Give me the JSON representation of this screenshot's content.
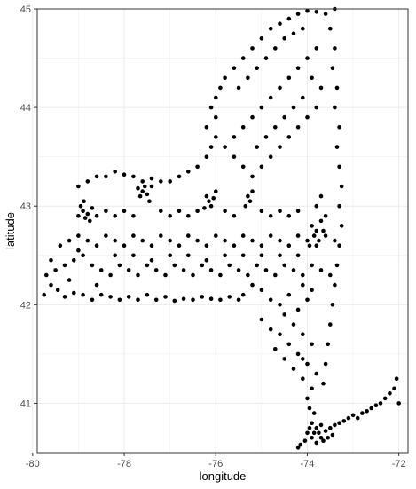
{
  "chart_data": {
    "type": "scatter",
    "title": "",
    "xlabel": "longitude",
    "ylabel": "latitude",
    "xlim": [
      -79.9,
      -71.8
    ],
    "ylim": [
      40.5,
      45.0
    ],
    "x_ticks": [
      -80,
      -78,
      -76,
      -74,
      -72
    ],
    "x_tick_labels": [
      "-80",
      "-78",
      "-76",
      "-74",
      "-72"
    ],
    "y_ticks": [
      41,
      42,
      43,
      44,
      45
    ],
    "y_tick_labels": [
      "41",
      "42",
      "43",
      "44",
      "45"
    ],
    "grid": true,
    "legend": "none",
    "point_color": "#000000",
    "panel_border_color": "#333333",
    "grid_color": "#ebebeb",
    "points": [
      [
        -79.75,
        42.1
      ],
      [
        -79.6,
        42.2
      ],
      [
        -79.45,
        42.15
      ],
      [
        -79.3,
        42.08
      ],
      [
        -79.1,
        42.12
      ],
      [
        -78.9,
        42.1
      ],
      [
        -78.7,
        42.05
      ],
      [
        -78.5,
        42.1
      ],
      [
        -78.3,
        42.08
      ],
      [
        -78.1,
        42.05
      ],
      [
        -77.9,
        42.08
      ],
      [
        -77.7,
        42.05
      ],
      [
        -77.5,
        42.1
      ],
      [
        -77.3,
        42.05
      ],
      [
        -77.1,
        42.08
      ],
      [
        -76.9,
        42.04
      ],
      [
        -76.7,
        42.06
      ],
      [
        -76.5,
        42.05
      ],
      [
        -76.3,
        42.08
      ],
      [
        -76.1,
        42.06
      ],
      [
        -75.9,
        42.05
      ],
      [
        -75.7,
        42.08
      ],
      [
        -75.5,
        42.05
      ],
      [
        -75.4,
        42.1
      ],
      [
        -79.7,
        42.3
      ],
      [
        -79.5,
        42.35
      ],
      [
        -79.3,
        42.4
      ],
      [
        -79.1,
        42.45
      ],
      [
        -78.9,
        42.5
      ],
      [
        -78.7,
        42.4
      ],
      [
        -78.5,
        42.35
      ],
      [
        -78.3,
        42.3
      ],
      [
        -78.1,
        42.4
      ],
      [
        -77.9,
        42.35
      ],
      [
        -77.7,
        42.3
      ],
      [
        -77.5,
        42.4
      ],
      [
        -77.3,
        42.35
      ],
      [
        -77.1,
        42.3
      ],
      [
        -76.9,
        42.4
      ],
      [
        -76.7,
        42.35
      ],
      [
        -76.5,
        42.3
      ],
      [
        -76.3,
        42.4
      ],
      [
        -76.1,
        42.35
      ],
      [
        -75.9,
        42.3
      ],
      [
        -75.7,
        42.4
      ],
      [
        -75.5,
        42.35
      ],
      [
        -75.3,
        42.3
      ],
      [
        -75.1,
        42.4
      ],
      [
        -74.9,
        42.35
      ],
      [
        -74.7,
        42.3
      ],
      [
        -74.5,
        42.4
      ],
      [
        -74.3,
        42.35
      ],
      [
        -74.1,
        42.3
      ],
      [
        -73.9,
        42.4
      ],
      [
        -73.7,
        42.35
      ],
      [
        -73.5,
        42.3
      ],
      [
        -79.4,
        42.6
      ],
      [
        -79.2,
        42.65
      ],
      [
        -79.0,
        42.7
      ],
      [
        -78.8,
        42.65
      ],
      [
        -78.6,
        42.6
      ],
      [
        -78.4,
        42.7
      ],
      [
        -78.2,
        42.65
      ],
      [
        -78.0,
        42.6
      ],
      [
        -77.8,
        42.7
      ],
      [
        -77.6,
        42.65
      ],
      [
        -77.4,
        42.6
      ],
      [
        -77.2,
        42.7
      ],
      [
        -77.0,
        42.65
      ],
      [
        -76.8,
        42.6
      ],
      [
        -76.6,
        42.7
      ],
      [
        -76.4,
        42.65
      ],
      [
        -76.2,
        42.6
      ],
      [
        -76.0,
        42.7
      ],
      [
        -75.8,
        42.65
      ],
      [
        -75.6,
        42.6
      ],
      [
        -75.4,
        42.7
      ],
      [
        -75.2,
        42.65
      ],
      [
        -75.0,
        42.6
      ],
      [
        -74.8,
        42.7
      ],
      [
        -74.6,
        42.65
      ],
      [
        -74.4,
        42.6
      ],
      [
        -74.2,
        42.7
      ],
      [
        -74.0,
        42.65
      ],
      [
        -73.8,
        42.6
      ],
      [
        -73.6,
        42.7
      ],
      [
        -73.4,
        42.65
      ],
      [
        -79.0,
        42.9
      ],
      [
        -78.9,
        42.95
      ],
      [
        -78.85,
        42.88
      ],
      [
        -78.8,
        42.92
      ],
      [
        -78.95,
        43.0
      ],
      [
        -78.75,
        42.85
      ],
      [
        -78.88,
        43.05
      ],
      [
        -78.7,
        42.98
      ],
      [
        -78.6,
        42.9
      ],
      [
        -78.4,
        42.95
      ],
      [
        -78.2,
        42.9
      ],
      [
        -78.0,
        42.95
      ],
      [
        -77.8,
        42.9
      ],
      [
        -77.6,
        43.15
      ],
      [
        -77.55,
        43.2
      ],
      [
        -77.65,
        43.1
      ],
      [
        -77.5,
        43.12
      ],
      [
        -77.7,
        43.18
      ],
      [
        -77.45,
        43.05
      ],
      [
        -77.6,
        43.25
      ],
      [
        -77.4,
        43.2
      ],
      [
        -77.2,
        42.95
      ],
      [
        -77.0,
        42.9
      ],
      [
        -76.8,
        42.95
      ],
      [
        -76.6,
        42.9
      ],
      [
        -76.4,
        42.95
      ],
      [
        -76.15,
        43.05
      ],
      [
        -76.1,
        43.0
      ],
      [
        -76.2,
        43.1
      ],
      [
        -76.05,
        43.08
      ],
      [
        -76.25,
        42.98
      ],
      [
        -76.0,
        43.15
      ],
      [
        -75.8,
        42.95
      ],
      [
        -75.6,
        42.9
      ],
      [
        -75.3,
        43.1
      ],
      [
        -75.25,
        43.05
      ],
      [
        -75.35,
        43.0
      ],
      [
        -75.2,
        43.15
      ],
      [
        -75.0,
        42.95
      ],
      [
        -74.8,
        42.9
      ],
      [
        -74.6,
        42.95
      ],
      [
        -74.4,
        42.9
      ],
      [
        -74.2,
        42.95
      ],
      [
        -73.9,
        42.8
      ],
      [
        -73.8,
        42.75
      ],
      [
        -73.75,
        42.65
      ],
      [
        -73.85,
        42.7
      ],
      [
        -73.7,
        42.85
      ],
      [
        -73.95,
        42.6
      ],
      [
        -73.65,
        42.75
      ],
      [
        -73.8,
        43.0
      ],
      [
        -73.7,
        43.1
      ],
      [
        -73.6,
        42.9
      ],
      [
        -79.0,
        43.2
      ],
      [
        -78.8,
        43.25
      ],
      [
        -78.6,
        43.3
      ],
      [
        -78.4,
        43.3
      ],
      [
        -78.2,
        43.35
      ],
      [
        -78.0,
        43.32
      ],
      [
        -77.8,
        43.3
      ],
      [
        -77.4,
        43.28
      ],
      [
        -77.2,
        43.25
      ],
      [
        -77.0,
        43.25
      ],
      [
        -76.8,
        43.3
      ],
      [
        -76.6,
        43.35
      ],
      [
        -76.4,
        43.4
      ],
      [
        -76.2,
        43.5
      ],
      [
        -76.1,
        43.6
      ],
      [
        -76.0,
        43.7
      ],
      [
        -76.2,
        43.8
      ],
      [
        -76.0,
        43.9
      ],
      [
        -76.1,
        44.0
      ],
      [
        -76.0,
        44.1
      ],
      [
        -75.9,
        44.2
      ],
      [
        -75.8,
        44.3
      ],
      [
        -75.6,
        44.4
      ],
      [
        -75.4,
        44.5
      ],
      [
        -75.2,
        44.6
      ],
      [
        -75.0,
        44.7
      ],
      [
        -74.8,
        44.8
      ],
      [
        -74.6,
        44.85
      ],
      [
        -74.4,
        44.9
      ],
      [
        -74.2,
        44.95
      ],
      [
        -74.0,
        44.98
      ],
      [
        -73.8,
        44.97
      ],
      [
        -73.6,
        44.95
      ],
      [
        -73.4,
        45.0
      ],
      [
        -73.5,
        44.8
      ],
      [
        -73.4,
        44.6
      ],
      [
        -73.45,
        44.4
      ],
      [
        -73.35,
        44.2
      ],
      [
        -73.4,
        44.0
      ],
      [
        -73.3,
        43.8
      ],
      [
        -73.35,
        43.6
      ],
      [
        -73.3,
        43.4
      ],
      [
        -73.25,
        43.2
      ],
      [
        -73.3,
        43.0
      ],
      [
        -73.25,
        42.8
      ],
      [
        -73.3,
        42.6
      ],
      [
        -73.35,
        42.4
      ],
      [
        -73.4,
        42.2
      ],
      [
        -73.45,
        42.0
      ],
      [
        -73.5,
        41.8
      ],
      [
        -73.55,
        41.6
      ],
      [
        -73.6,
        41.4
      ],
      [
        -73.65,
        41.2
      ],
      [
        -75.6,
        43.7
      ],
      [
        -75.4,
        43.8
      ],
      [
        -75.2,
        43.9
      ],
      [
        -75.0,
        44.0
      ],
      [
        -74.8,
        44.1
      ],
      [
        -74.6,
        44.2
      ],
      [
        -74.4,
        44.3
      ],
      [
        -74.2,
        44.4
      ],
      [
        -74.0,
        44.5
      ],
      [
        -73.8,
        44.6
      ],
      [
        -75.5,
        44.2
      ],
      [
        -75.3,
        44.3
      ],
      [
        -75.1,
        44.4
      ],
      [
        -74.9,
        44.5
      ],
      [
        -74.7,
        44.6
      ],
      [
        -74.5,
        44.7
      ],
      [
        -74.3,
        44.75
      ],
      [
        -74.1,
        44.8
      ],
      [
        -75.8,
        43.6
      ],
      [
        -75.6,
        43.5
      ],
      [
        -75.4,
        43.4
      ],
      [
        -75.2,
        43.3
      ],
      [
        -75.0,
        43.4
      ],
      [
        -74.8,
        43.5
      ],
      [
        -74.6,
        43.6
      ],
      [
        -74.4,
        43.7
      ],
      [
        -74.2,
        43.8
      ],
      [
        -74.0,
        43.9
      ],
      [
        -73.8,
        44.0
      ],
      [
        -73.7,
        44.2
      ],
      [
        -73.9,
        44.3
      ],
      [
        -74.1,
        44.1
      ],
      [
        -74.3,
        44.0
      ],
      [
        -74.5,
        43.9
      ],
      [
        -74.7,
        43.8
      ],
      [
        -74.9,
        43.7
      ],
      [
        -75.1,
        43.6
      ],
      [
        -74.5,
        41.9
      ],
      [
        -74.3,
        41.8
      ],
      [
        -74.1,
        41.7
      ],
      [
        -73.9,
        41.6
      ],
      [
        -74.4,
        41.6
      ],
      [
        -74.2,
        41.5
      ],
      [
        -74.0,
        41.4
      ],
      [
        -73.8,
        41.3
      ],
      [
        -74.6,
        41.7
      ],
      [
        -74.8,
        41.75
      ],
      [
        -75.0,
        41.85
      ],
      [
        -74.7,
        41.55
      ],
      [
        -74.5,
        41.45
      ],
      [
        -74.3,
        41.35
      ],
      [
        -74.1,
        41.25
      ],
      [
        -73.9,
        41.15
      ],
      [
        -74.0,
        41.05
      ],
      [
        -73.95,
        40.95
      ],
      [
        -73.85,
        40.9
      ],
      [
        -73.9,
        40.8
      ],
      [
        -73.95,
        40.75
      ],
      [
        -73.85,
        40.7
      ],
      [
        -74.0,
        40.7
      ],
      [
        -74.05,
        40.62
      ],
      [
        -74.15,
        40.58
      ],
      [
        -74.2,
        40.55
      ],
      [
        -73.8,
        40.75
      ],
      [
        -73.75,
        40.7
      ],
      [
        -73.7,
        40.78
      ],
      [
        -73.6,
        40.72
      ],
      [
        -73.5,
        40.75
      ],
      [
        -73.4,
        40.78
      ],
      [
        -73.3,
        40.8
      ],
      [
        -73.2,
        40.82
      ],
      [
        -73.1,
        40.85
      ],
      [
        -73.0,
        40.88
      ],
      [
        -72.9,
        40.85
      ],
      [
        -72.8,
        40.9
      ],
      [
        -72.7,
        40.92
      ],
      [
        -72.6,
        40.95
      ],
      [
        -72.5,
        40.98
      ],
      [
        -72.4,
        41.0
      ],
      [
        -72.3,
        41.05
      ],
      [
        -72.2,
        41.1
      ],
      [
        -72.1,
        41.15
      ],
      [
        -72.0,
        41.0
      ],
      [
        -72.05,
        41.25
      ],
      [
        -73.55,
        40.65
      ],
      [
        -73.45,
        40.68
      ],
      [
        -73.65,
        40.62
      ],
      [
        -73.9,
        40.65
      ],
      [
        -73.8,
        40.6
      ],
      [
        -73.7,
        40.65
      ],
      [
        -74.1,
        41.45
      ],
      [
        -74.2,
        41.95
      ],
      [
        -74.0,
        42.05
      ],
      [
        -73.9,
        42.15
      ],
      [
        -74.1,
        42.2
      ],
      [
        -74.4,
        42.1
      ],
      [
        -74.6,
        42.0
      ],
      [
        -74.8,
        42.05
      ],
      [
        -75.0,
        42.15
      ],
      [
        -75.2,
        42.2
      ],
      [
        -79.2,
        42.25
      ],
      [
        -79.6,
        42.45
      ],
      [
        -79.0,
        42.55
      ],
      [
        -78.6,
        42.2
      ],
      [
        -78.2,
        42.5
      ],
      [
        -77.8,
        42.5
      ],
      [
        -77.4,
        42.45
      ],
      [
        -77.0,
        42.5
      ],
      [
        -76.6,
        42.5
      ],
      [
        -76.2,
        42.45
      ],
      [
        -75.8,
        42.5
      ],
      [
        -75.4,
        42.5
      ],
      [
        -75.0,
        42.5
      ],
      [
        -74.6,
        42.5
      ],
      [
        -74.2,
        42.5
      ]
    ]
  }
}
